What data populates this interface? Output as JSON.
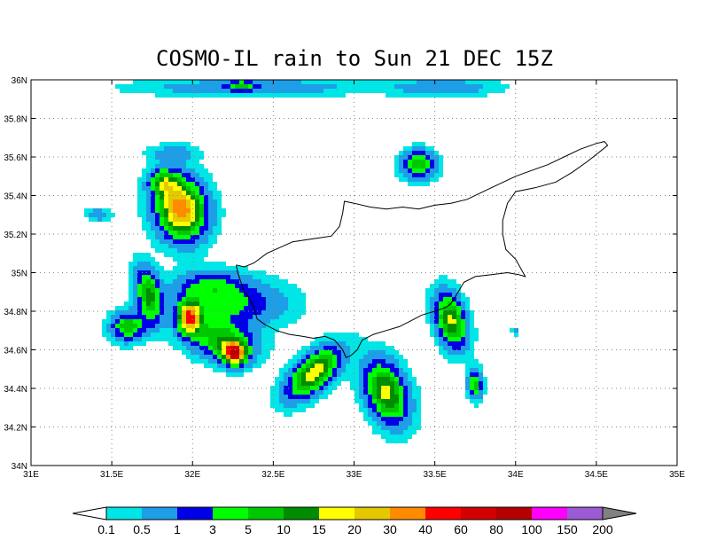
{
  "title": "COSMO-IL rain to Sun 21 DEC 15Z",
  "map": {
    "lon_range": [
      31,
      35
    ],
    "lat_range": [
      34,
      36
    ],
    "lon_ticks": [
      "31E",
      "31.5E",
      "32E",
      "32.5E",
      "33E",
      "33.5E",
      "34E",
      "34.5E",
      "35E"
    ],
    "lat_ticks": [
      "34N",
      "34.2N",
      "34.4N",
      "34.6N",
      "34.8N",
      "35N",
      "35.2N",
      "35.4N",
      "35.6N",
      "35.8N",
      "36N"
    ],
    "grid": "dotted",
    "coastline_color": "#000000"
  },
  "colorbar": {
    "labels": [
      "0.1",
      "0.5",
      "1",
      "3",
      "5",
      "10",
      "15",
      "20",
      "30",
      "40",
      "60",
      "80",
      "100",
      "150",
      "200"
    ],
    "colors": [
      "#00e5e5",
      "#1e9ee6",
      "#0000e6",
      "#00ff00",
      "#00c800",
      "#008c00",
      "#ffff00",
      "#e6c800",
      "#ff8c00",
      "#ff0000",
      "#d20000",
      "#b40000",
      "#ff00ff",
      "#9b5bd5"
    ],
    "under_color": "#ffffff",
    "over_color": "#808080"
  },
  "rain_cells": [
    {
      "lon": 31.93,
      "lat": 35.33,
      "slon": 0.1,
      "slat": 0.11,
      "peak": 8.8,
      "angle": 40
    },
    {
      "lon": 31.82,
      "lat": 35.47,
      "slon": 0.06,
      "slat": 0.05,
      "peak": 4.2,
      "angle": 0
    },
    {
      "lon": 31.88,
      "lat": 35.62,
      "slon": 0.1,
      "slat": 0.03,
      "peak": 1.6,
      "angle": 0
    },
    {
      "lon": 31.73,
      "lat": 34.88,
      "slon": 0.05,
      "slat": 0.1,
      "peak": 5.4,
      "angle": 15
    },
    {
      "lon": 31.6,
      "lat": 34.72,
      "slon": 0.07,
      "slat": 0.05,
      "peak": 4.8,
      "angle": 0
    },
    {
      "lon": 31.98,
      "lat": 34.77,
      "slon": 0.05,
      "slat": 0.06,
      "peak": 8.2,
      "angle": 0
    },
    {
      "lon": 32.18,
      "lat": 34.65,
      "slon": 0.14,
      "slat": 0.07,
      "peak": 4.7,
      "angle": -10
    },
    {
      "lon": 32.26,
      "lat": 34.58,
      "slon": 0.05,
      "slat": 0.04,
      "peak": 9.1,
      "angle": 0
    },
    {
      "lon": 32.25,
      "lat": 34.84,
      "slon": 0.22,
      "slat": 0.08,
      "peak": 3.2,
      "angle": 0
    },
    {
      "lon": 32.1,
      "lat": 34.94,
      "slon": 0.14,
      "slat": 0.05,
      "peak": 2.6,
      "angle": 0
    },
    {
      "lon": 32.75,
      "lat": 34.48,
      "slon": 0.13,
      "slat": 0.06,
      "peak": 6.8,
      "angle": 35
    },
    {
      "lon": 33.2,
      "lat": 34.38,
      "slon": 0.08,
      "slat": 0.12,
      "peak": 6.5,
      "angle": 30
    },
    {
      "lon": 33.6,
      "lat": 34.75,
      "slon": 0.06,
      "slat": 0.1,
      "peak": 6.3,
      "angle": 20
    },
    {
      "lon": 33.75,
      "lat": 34.42,
      "slon": 0.03,
      "slat": 0.05,
      "peak": 4.4,
      "angle": 0
    },
    {
      "lon": 33.4,
      "lat": 35.56,
      "slon": 0.07,
      "slat": 0.05,
      "peak": 4.6,
      "angle": 0
    },
    {
      "lon": 32.35,
      "lat": 35.96,
      "slon": 0.45,
      "slat": 0.03,
      "peak": 2.0,
      "angle": 0
    },
    {
      "lon": 33.55,
      "lat": 35.96,
      "slon": 0.22,
      "slat": 0.03,
      "peak": 1.9,
      "angle": 0
    },
    {
      "lon": 32.3,
      "lat": 35.97,
      "slon": 0.05,
      "slat": 0.02,
      "peak": 3.0,
      "angle": 0
    },
    {
      "lon": 31.42,
      "lat": 35.3,
      "slon": 0.05,
      "slat": 0.025,
      "peak": 1.7,
      "angle": 0
    },
    {
      "lon": 34.0,
      "lat": 34.7,
      "slon": 0.02,
      "slat": 0.015,
      "peak": 1.2,
      "angle": 0
    }
  ],
  "coastline": [
    [
      32.27,
      35.04
    ],
    [
      32.32,
      35.03
    ],
    [
      32.38,
      35.05
    ],
    [
      32.46,
      35.1
    ],
    [
      32.54,
      35.13
    ],
    [
      32.62,
      35.16
    ],
    [
      32.7,
      35.17
    ],
    [
      32.78,
      35.18
    ],
    [
      32.86,
      35.19
    ],
    [
      32.91,
      35.24
    ],
    [
      32.93,
      35.31
    ],
    [
      32.94,
      35.37
    ],
    [
      33.0,
      35.36
    ],
    [
      33.1,
      35.34
    ],
    [
      33.2,
      35.33
    ],
    [
      33.3,
      35.34
    ],
    [
      33.4,
      35.33
    ],
    [
      33.5,
      35.35
    ],
    [
      33.6,
      35.36
    ],
    [
      33.7,
      35.38
    ],
    [
      33.8,
      35.42
    ],
    [
      33.9,
      35.46
    ],
    [
      34.0,
      35.5
    ],
    [
      34.1,
      35.53
    ],
    [
      34.2,
      35.56
    ],
    [
      34.3,
      35.6
    ],
    [
      34.4,
      35.64
    ],
    [
      34.5,
      35.67
    ],
    [
      34.55,
      35.68
    ],
    [
      34.57,
      35.66
    ],
    [
      34.45,
      35.58
    ],
    [
      34.35,
      35.52
    ],
    [
      34.25,
      35.47
    ],
    [
      34.12,
      35.44
    ],
    [
      34.0,
      35.42
    ],
    [
      33.95,
      35.36
    ],
    [
      33.92,
      35.27
    ],
    [
      33.92,
      35.2
    ],
    [
      33.94,
      35.12
    ],
    [
      34.0,
      35.07
    ],
    [
      34.06,
      34.98
    ],
    [
      34.02,
      34.99
    ],
    [
      33.95,
      35.0
    ],
    [
      33.85,
      34.99
    ],
    [
      33.75,
      34.98
    ],
    [
      33.68,
      34.95
    ],
    [
      33.63,
      34.88
    ],
    [
      33.6,
      34.84
    ],
    [
      33.57,
      34.82
    ],
    [
      33.5,
      34.8
    ],
    [
      33.42,
      34.78
    ],
    [
      33.35,
      34.75
    ],
    [
      33.28,
      34.72
    ],
    [
      33.2,
      34.7
    ],
    [
      33.12,
      34.68
    ],
    [
      33.05,
      34.65
    ],
    [
      33.02,
      34.6
    ],
    [
      32.98,
      34.57
    ],
    [
      32.95,
      34.56
    ],
    [
      32.93,
      34.6
    ],
    [
      32.88,
      34.65
    ],
    [
      32.82,
      34.67
    ],
    [
      32.75,
      34.66
    ],
    [
      32.68,
      34.67
    ],
    [
      32.6,
      34.68
    ],
    [
      32.52,
      34.7
    ],
    [
      32.45,
      34.73
    ],
    [
      32.4,
      34.76
    ],
    [
      32.38,
      34.82
    ],
    [
      32.35,
      34.87
    ],
    [
      32.32,
      34.9
    ],
    [
      32.3,
      34.95
    ],
    [
      32.28,
      35.0
    ],
    [
      32.27,
      35.04
    ]
  ]
}
